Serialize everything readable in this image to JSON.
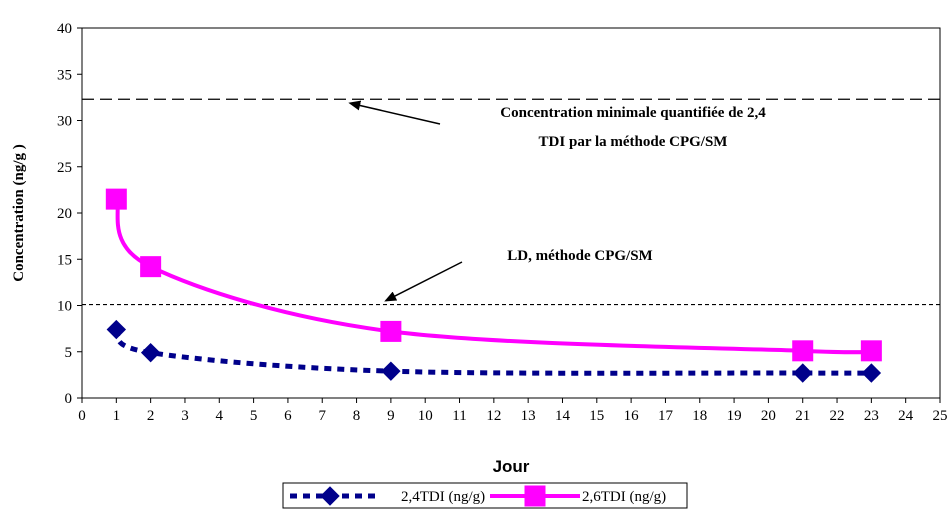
{
  "chart_data": {
    "type": "line",
    "title": "",
    "xlabel": "Jour",
    "ylabel": "Concentration (ng/g )",
    "xlim": [
      0,
      25
    ],
    "ylim": [
      0,
      40
    ],
    "x_ticks": [
      0,
      1,
      2,
      3,
      4,
      5,
      6,
      7,
      8,
      9,
      10,
      11,
      12,
      13,
      14,
      15,
      16,
      17,
      18,
      19,
      20,
      21,
      22,
      23,
      24,
      25
    ],
    "y_ticks": [
      0,
      5,
      10,
      15,
      20,
      25,
      30,
      35,
      40
    ],
    "grid": false,
    "legend_position": "bottom",
    "series": [
      {
        "name": "2,4TDI (ng/g)",
        "x": [
          1,
          2,
          9,
          21,
          23
        ],
        "values": [
          7.4,
          4.9,
          2.9,
          2.7,
          2.7
        ],
        "color": "#00008B",
        "line_style": "dotted",
        "marker": "diamond"
      },
      {
        "name": "2,6TDI (ng/g)",
        "x": [
          1,
          2,
          9,
          21,
          23
        ],
        "values": [
          21.5,
          14.2,
          7.2,
          5.1,
          5.1
        ],
        "color": "#FF00FF",
        "line_style": "solid",
        "marker": "square"
      }
    ],
    "reference_lines": [
      {
        "y": 32.3,
        "style": "long-dash"
      },
      {
        "y": 10.1,
        "style": "short-dash"
      }
    ],
    "annotations": [
      {
        "lines": [
          "Concentration minimale quantifiée de 2,4",
          "TDI par la méthode  CPG/SM"
        ],
        "arrow_to": [
          7.7,
          32.3
        ]
      },
      {
        "lines": [
          "LD, méthode CPG/SM"
        ],
        "arrow_to": [
          8.8,
          10.1
        ]
      }
    ]
  }
}
